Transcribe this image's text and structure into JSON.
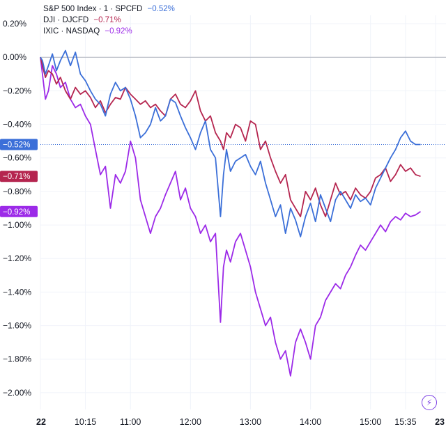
{
  "legend": {
    "items": [
      {
        "label": "S&P 500 Index · 1 · SPCFD",
        "value": "−0.52%",
        "color": "#3b6fd8"
      },
      {
        "label": "DJI · DJCFD",
        "value": "−0.71%",
        "color": "#b5254f"
      },
      {
        "label": "IXIC · NASDAQ",
        "value": "−0.92%",
        "color": "#9c2ae8"
      }
    ]
  },
  "lightning_icon": "lightning-icon",
  "chart_data": {
    "type": "line",
    "title": "",
    "xlabel": "",
    "ylabel": "",
    "ylim": [
      -2.1,
      0.25
    ],
    "xlim": [
      570,
      965
    ],
    "y_ticks": [
      0.2,
      0.0,
      -0.2,
      -0.4,
      -0.6,
      -0.8,
      -1.0,
      -1.2,
      -1.4,
      -1.6,
      -1.8,
      -2.0
    ],
    "y_tick_labels": [
      "0.20%",
      "0.00%",
      "−0.20%",
      "−0.40%",
      "−0.60%",
      "−0.80%",
      "−1.00%",
      "−1.20%",
      "−1.40%",
      "−1.60%",
      "−1.80%",
      "−2.00%"
    ],
    "x_ticks": [
      570,
      615,
      660,
      720,
      780,
      840,
      900,
      935,
      965
    ],
    "x_tick_labels": [
      "22",
      "10:15",
      "11:00",
      "12:00",
      "13:00",
      "14:00",
      "15:00",
      "15:35",
      "23"
    ],
    "zero_line": 0.0,
    "grid": true,
    "series": [
      {
        "name": "S&P 500 Index · 1 · SPCFD",
        "color": "#3b6fd8",
        "last": -0.52,
        "tag": "−0.52%",
        "x": [
          570,
          572,
          575,
          578,
          582,
          586,
          590,
          595,
          600,
          605,
          610,
          615,
          620,
          625,
          630,
          635,
          640,
          645,
          650,
          655,
          660,
          665,
          670,
          675,
          680,
          685,
          690,
          695,
          700,
          705,
          710,
          715,
          720,
          725,
          730,
          735,
          740,
          745,
          750,
          753,
          756,
          760,
          765,
          770,
          775,
          780,
          785,
          790,
          795,
          800,
          805,
          810,
          815,
          820,
          825,
          830,
          835,
          840,
          845,
          850,
          855,
          860,
          865,
          870,
          875,
          880,
          885,
          890,
          895,
          900,
          905,
          910,
          915,
          920,
          925,
          930,
          935,
          940,
          945,
          950
        ],
        "y": [
          0.0,
          -0.02,
          -0.1,
          -0.05,
          0.02,
          -0.08,
          -0.02,
          0.04,
          -0.05,
          0.03,
          -0.1,
          -0.14,
          -0.2,
          -0.25,
          -0.28,
          -0.35,
          -0.22,
          -0.15,
          -0.2,
          -0.18,
          -0.25,
          -0.35,
          -0.48,
          -0.45,
          -0.4,
          -0.3,
          -0.38,
          -0.35,
          -0.25,
          -0.27,
          -0.35,
          -0.42,
          -0.48,
          -0.55,
          -0.45,
          -0.38,
          -0.55,
          -0.6,
          -0.95,
          -0.7,
          -0.55,
          -0.68,
          -0.62,
          -0.6,
          -0.58,
          -0.65,
          -0.7,
          -0.62,
          -0.75,
          -0.85,
          -0.95,
          -0.88,
          -1.05,
          -0.9,
          -0.97,
          -1.07,
          -0.95,
          -0.87,
          -0.98,
          -0.82,
          -0.9,
          -0.98,
          -0.85,
          -0.8,
          -0.85,
          -0.9,
          -0.82,
          -0.86,
          -0.84,
          -0.88,
          -0.78,
          -0.72,
          -0.66,
          -0.6,
          -0.55,
          -0.48,
          -0.44,
          -0.5,
          -0.52,
          -0.52
        ]
      },
      {
        "name": "DJI · DJCFD",
        "color": "#b5254f",
        "last": -0.71,
        "tag": "−0.71%",
        "x": [
          570,
          572,
          575,
          578,
          582,
          586,
          590,
          595,
          600,
          605,
          610,
          615,
          620,
          625,
          630,
          635,
          640,
          645,
          650,
          655,
          660,
          665,
          670,
          675,
          680,
          685,
          690,
          695,
          700,
          705,
          710,
          715,
          720,
          725,
          730,
          735,
          740,
          745,
          750,
          753,
          756,
          760,
          765,
          770,
          775,
          780,
          785,
          790,
          795,
          800,
          805,
          810,
          815,
          820,
          825,
          830,
          835,
          840,
          845,
          850,
          855,
          860,
          865,
          870,
          875,
          880,
          885,
          890,
          895,
          900,
          905,
          910,
          915,
          920,
          925,
          930,
          935,
          940,
          945,
          950
        ],
        "y": [
          0.0,
          -0.05,
          -0.12,
          -0.08,
          -0.1,
          -0.16,
          -0.12,
          -0.2,
          -0.25,
          -0.18,
          -0.22,
          -0.2,
          -0.24,
          -0.3,
          -0.26,
          -0.33,
          -0.28,
          -0.24,
          -0.25,
          -0.18,
          -0.22,
          -0.25,
          -0.28,
          -0.26,
          -0.3,
          -0.28,
          -0.32,
          -0.35,
          -0.25,
          -0.22,
          -0.28,
          -0.3,
          -0.26,
          -0.2,
          -0.32,
          -0.38,
          -0.35,
          -0.45,
          -0.5,
          -0.55,
          -0.45,
          -0.48,
          -0.4,
          -0.42,
          -0.5,
          -0.38,
          -0.4,
          -0.55,
          -0.5,
          -0.6,
          -0.68,
          -0.75,
          -0.7,
          -0.85,
          -0.9,
          -0.95,
          -0.8,
          -0.85,
          -0.78,
          -0.88,
          -0.95,
          -0.85,
          -0.75,
          -0.82,
          -0.8,
          -0.85,
          -0.78,
          -0.82,
          -0.84,
          -0.8,
          -0.72,
          -0.7,
          -0.66,
          -0.74,
          -0.7,
          -0.64,
          -0.68,
          -0.66,
          -0.7,
          -0.71
        ]
      },
      {
        "name": "IXIC · NASDAQ",
        "color": "#9c2ae8",
        "last": -0.92,
        "tag": "−0.92%",
        "x": [
          570,
          572,
          575,
          578,
          582,
          586,
          590,
          595,
          600,
          605,
          610,
          615,
          620,
          625,
          630,
          635,
          640,
          645,
          650,
          655,
          660,
          665,
          670,
          675,
          680,
          685,
          690,
          695,
          700,
          705,
          710,
          715,
          720,
          725,
          730,
          735,
          740,
          745,
          750,
          753,
          756,
          760,
          765,
          770,
          775,
          780,
          785,
          790,
          795,
          800,
          805,
          810,
          815,
          820,
          825,
          830,
          835,
          840,
          845,
          850,
          855,
          860,
          865,
          870,
          875,
          880,
          885,
          890,
          895,
          900,
          905,
          910,
          915,
          920,
          925,
          930,
          935,
          940,
          945,
          950
        ],
        "y": [
          0.0,
          -0.1,
          -0.25,
          -0.2,
          -0.05,
          -0.1,
          -0.18,
          -0.15,
          -0.25,
          -0.3,
          -0.28,
          -0.35,
          -0.4,
          -0.55,
          -0.7,
          -0.65,
          -0.9,
          -0.7,
          -0.75,
          -0.68,
          -0.5,
          -0.6,
          -0.85,
          -0.95,
          -1.05,
          -0.95,
          -0.9,
          -0.82,
          -0.75,
          -0.68,
          -0.85,
          -0.78,
          -0.9,
          -0.95,
          -1.05,
          -1.0,
          -1.1,
          -1.05,
          -1.58,
          -1.25,
          -1.15,
          -1.22,
          -1.1,
          -1.05,
          -1.15,
          -1.25,
          -1.4,
          -1.5,
          -1.6,
          -1.55,
          -1.7,
          -1.8,
          -1.75,
          -1.9,
          -1.7,
          -1.62,
          -1.7,
          -1.8,
          -1.6,
          -1.55,
          -1.45,
          -1.4,
          -1.35,
          -1.38,
          -1.3,
          -1.25,
          -1.18,
          -1.12,
          -1.15,
          -1.1,
          -1.05,
          -1.0,
          -1.04,
          -0.98,
          -0.95,
          -0.97,
          -0.93,
          -0.95,
          -0.94,
          -0.92
        ]
      }
    ]
  }
}
